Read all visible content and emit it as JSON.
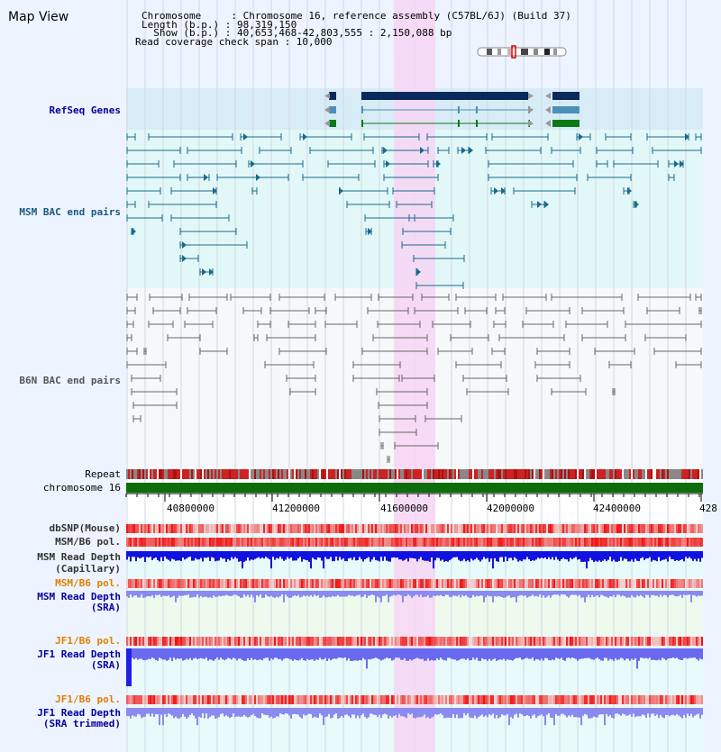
{
  "title": "Map View",
  "header": {
    "chromosome_line": "Chromosome     : Chromosome 16, reference assembly (C57BL/6J) (Build 37)",
    "length_line": "Length (b.p.) : 98,319,150",
    "show_line": "  Show (b.p.) : 40,653,468-42,803,555 : 2,150,088 bp",
    "coverage_line": "Read coverage check span : 10,000"
  },
  "tracks": {
    "refseq": "RefSeq Genes",
    "msm_bac": "MSM BAC end pairs",
    "b6n_bac": "B6N BAC end pairs",
    "repeat": "Repeat",
    "chromosome": "chromosome 16",
    "dbsnp": "dbSNP(Mouse)",
    "msm_b6_pol_1": "MSM/B6 pol.",
    "msm_read_depth_cap_1": "MSM Read Depth",
    "msm_read_depth_cap_2": "(Capillary)",
    "msm_b6_pol_2": "MSM/B6 pol.",
    "msm_read_depth_sra_1": "MSM Read Depth",
    "msm_read_depth_sra_2": "(SRA)",
    "jf1_b6_pol_1": "JF1/B6 pol.",
    "jf1_read_depth_sra_1": "JF1 Read Depth",
    "jf1_read_depth_sra_2": "(SRA)",
    "jf1_b6_pol_2": "JF1/B6 pol.",
    "jf1_read_depth_trim_1": "JF1 Read Depth",
    "jf1_read_depth_trim_2": "(SRA trimmed)"
  },
  "axis": {
    "ticks": [
      "40800000",
      "41200000",
      "41600000",
      "42000000",
      "42400000",
      "428"
    ]
  },
  "colors": {
    "refseq_dark": "#0a2a5c",
    "refseq_mid": "#4a90b8",
    "refseq_green": "#0b7a16",
    "msm_bac": "#1a6a8c",
    "b6n_bac": "#555555",
    "chrom_green": "#0b6e0b",
    "highlight": "#f7d6f4",
    "label_blue": "#0000a0",
    "label_orange": "#e08000",
    "label_dark": "#333333"
  }
}
